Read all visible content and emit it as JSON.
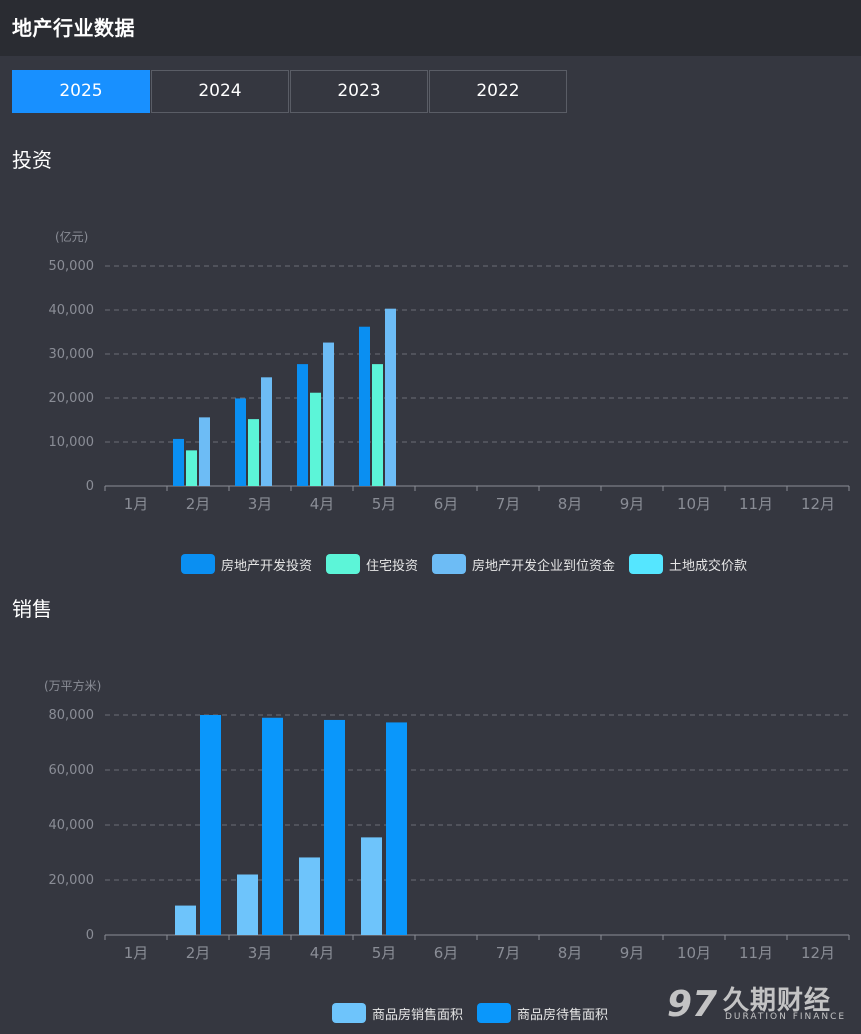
{
  "header": {
    "title": "地产行业数据"
  },
  "tabs": [
    {
      "label": "2025",
      "active": true
    },
    {
      "label": "2024",
      "active": false
    },
    {
      "label": "2023",
      "active": false
    },
    {
      "label": "2022",
      "active": false
    }
  ],
  "sections": {
    "investment": {
      "title": "投资"
    },
    "sales": {
      "title": "销售"
    }
  },
  "watermark": {
    "cn": "久期财经",
    "en": "DURATION FINANCE"
  },
  "chart_data": [
    {
      "type": "bar",
      "unit_label": "(亿元)",
      "categories": [
        "1月",
        "2月",
        "3月",
        "4月",
        "5月",
        "6月",
        "7月",
        "8月",
        "9月",
        "10月",
        "11月",
        "12月"
      ],
      "ylim": [
        0,
        50000
      ],
      "yticks": [
        "0",
        "10,000",
        "20,000",
        "30,000",
        "40,000",
        "50,000"
      ],
      "grid": true,
      "legend_position": "bottom",
      "series": [
        {
          "name": "房地产开发投资",
          "color": "#0a8ff2",
          "values": [
            null,
            10700,
            19900,
            27700,
            36200,
            null,
            null,
            null,
            null,
            null,
            null,
            null
          ]
        },
        {
          "name": "住宅投资",
          "color": "#5cf5d8",
          "values": [
            null,
            8100,
            15200,
            21200,
            27700,
            null,
            null,
            null,
            null,
            null,
            null,
            null
          ]
        },
        {
          "name": "房地产开发企业到位资金",
          "color": "#6dbcf5",
          "values": [
            null,
            15600,
            24700,
            32600,
            40300,
            null,
            null,
            null,
            null,
            null,
            null,
            null
          ]
        },
        {
          "name": "土地成交价款",
          "color": "#55e6ff",
          "values": [
            null,
            null,
            null,
            null,
            null,
            null,
            null,
            null,
            null,
            null,
            null,
            null
          ]
        }
      ]
    },
    {
      "type": "bar",
      "unit_label": "(万平方米)",
      "categories": [
        "1月",
        "2月",
        "3月",
        "4月",
        "5月",
        "6月",
        "7月",
        "8月",
        "9月",
        "10月",
        "11月",
        "12月"
      ],
      "ylim": [
        0,
        80000
      ],
      "yticks": [
        "0",
        "20,000",
        "40,000",
        "60,000",
        "80,000"
      ],
      "grid": true,
      "legend_position": "bottom",
      "series": [
        {
          "name": "商品房销售面积",
          "color": "#6ec4fb",
          "values": [
            null,
            10700,
            22000,
            28200,
            35500,
            null,
            null,
            null,
            null,
            null,
            null,
            null
          ]
        },
        {
          "name": "商品房待售面积",
          "color": "#0a97fb",
          "values": [
            null,
            80000,
            79000,
            78200,
            77300,
            null,
            null,
            null,
            null,
            null,
            null,
            null
          ]
        }
      ]
    }
  ]
}
